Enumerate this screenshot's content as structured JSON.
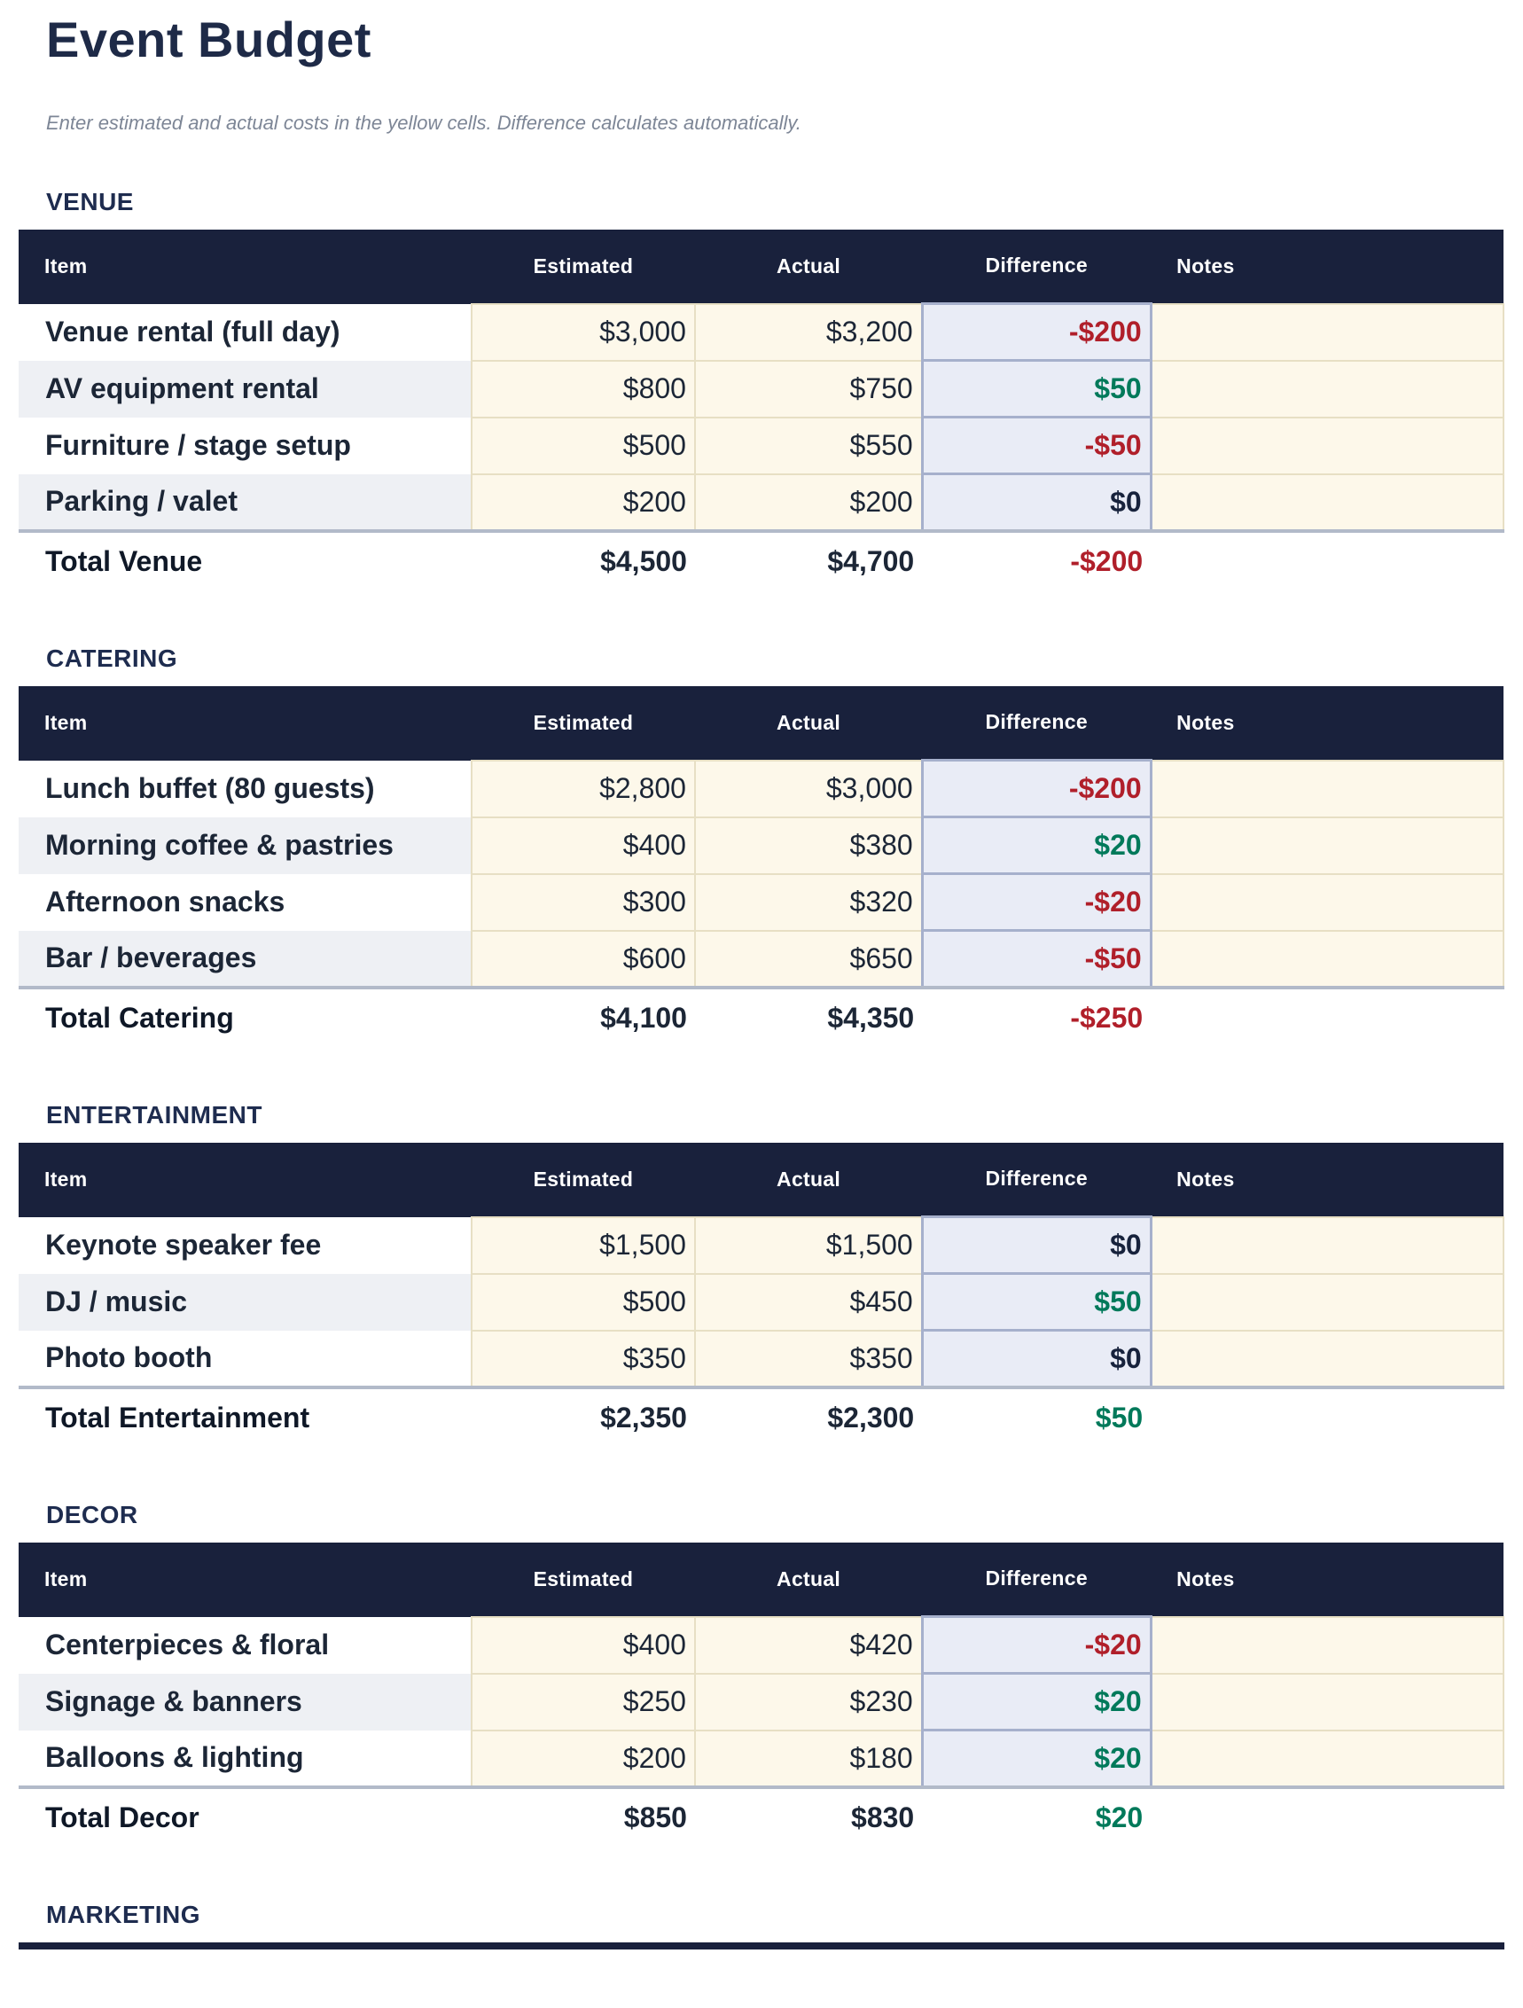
{
  "page": {
    "title": "Event Budget",
    "subtitle": "Enter estimated and actual costs in the yellow cells. Difference calculates automatically."
  },
  "table_columns": [
    "Item",
    "Estimated",
    "Actual",
    "Difference",
    "Notes"
  ],
  "colors": {
    "table_header_bg": "#19213c",
    "section_heading_text": "#1e2c4f",
    "input_cell_bg": "#fdf8ea",
    "input_cell_border": "#e7dfc4",
    "difference_cell_bg": "#e9ecf6",
    "difference_cell_border": "#a6b0cc",
    "negative_value": "#b01f2a",
    "positive_value": "#00795a",
    "zero_value": "#17223c",
    "alt_row_bg": "#eef0f4",
    "total_row_top_border": "#b2bac9"
  },
  "sections": [
    {
      "heading": "VENUE",
      "rows": [
        {
          "item": "Venue rental (full day)",
          "estimated": "$3,000",
          "actual": "$3,200",
          "difference": "-$200",
          "diff_type": "negative",
          "notes": ""
        },
        {
          "item": "AV equipment rental",
          "estimated": "$800",
          "actual": "$750",
          "difference": "$50",
          "diff_type": "positive",
          "notes": ""
        },
        {
          "item": "Furniture / stage setup",
          "estimated": "$500",
          "actual": "$550",
          "difference": "-$50",
          "diff_type": "negative",
          "notes": ""
        },
        {
          "item": "Parking / valet",
          "estimated": "$200",
          "actual": "$200",
          "difference": "$0",
          "diff_type": "zero",
          "notes": ""
        }
      ],
      "total": {
        "label": "Total Venue",
        "estimated": "$4,500",
        "actual": "$4,700",
        "difference": "-$200",
        "diff_type": "negative",
        "notes": ""
      }
    },
    {
      "heading": "CATERING",
      "rows": [
        {
          "item": "Lunch buffet (80 guests)",
          "estimated": "$2,800",
          "actual": "$3,000",
          "difference": "-$200",
          "diff_type": "negative",
          "notes": ""
        },
        {
          "item": "Morning coffee & pastries",
          "estimated": "$400",
          "actual": "$380",
          "difference": "$20",
          "diff_type": "positive",
          "notes": ""
        },
        {
          "item": "Afternoon snacks",
          "estimated": "$300",
          "actual": "$320",
          "difference": "-$20",
          "diff_type": "negative",
          "notes": ""
        },
        {
          "item": "Bar / beverages",
          "estimated": "$600",
          "actual": "$650",
          "difference": "-$50",
          "diff_type": "negative",
          "notes": ""
        }
      ],
      "total": {
        "label": "Total Catering",
        "estimated": "$4,100",
        "actual": "$4,350",
        "difference": "-$250",
        "diff_type": "negative",
        "notes": ""
      }
    },
    {
      "heading": "ENTERTAINMENT",
      "rows": [
        {
          "item": "Keynote speaker fee",
          "estimated": "$1,500",
          "actual": "$1,500",
          "difference": "$0",
          "diff_type": "zero",
          "notes": ""
        },
        {
          "item": "DJ / music",
          "estimated": "$500",
          "actual": "$450",
          "difference": "$50",
          "diff_type": "positive",
          "notes": ""
        },
        {
          "item": "Photo booth",
          "estimated": "$350",
          "actual": "$350",
          "difference": "$0",
          "diff_type": "zero",
          "notes": ""
        }
      ],
      "total": {
        "label": "Total Entertainment",
        "estimated": "$2,350",
        "actual": "$2,300",
        "difference": "$50",
        "diff_type": "positive",
        "notes": ""
      }
    },
    {
      "heading": "DECOR",
      "rows": [
        {
          "item": "Centerpieces & floral",
          "estimated": "$400",
          "actual": "$420",
          "difference": "-$20",
          "diff_type": "negative",
          "notes": ""
        },
        {
          "item": "Signage & banners",
          "estimated": "$250",
          "actual": "$230",
          "difference": "$20",
          "diff_type": "positive",
          "notes": ""
        },
        {
          "item": "Balloons & lighting",
          "estimated": "$200",
          "actual": "$180",
          "difference": "$20",
          "diff_type": "positive",
          "notes": ""
        }
      ],
      "total": {
        "label": "Total Decor",
        "estimated": "$850",
        "actual": "$830",
        "difference": "$20",
        "diff_type": "positive",
        "notes": ""
      }
    },
    {
      "heading": "MARKETING",
      "rows": [],
      "total": null,
      "truncated": true
    }
  ]
}
